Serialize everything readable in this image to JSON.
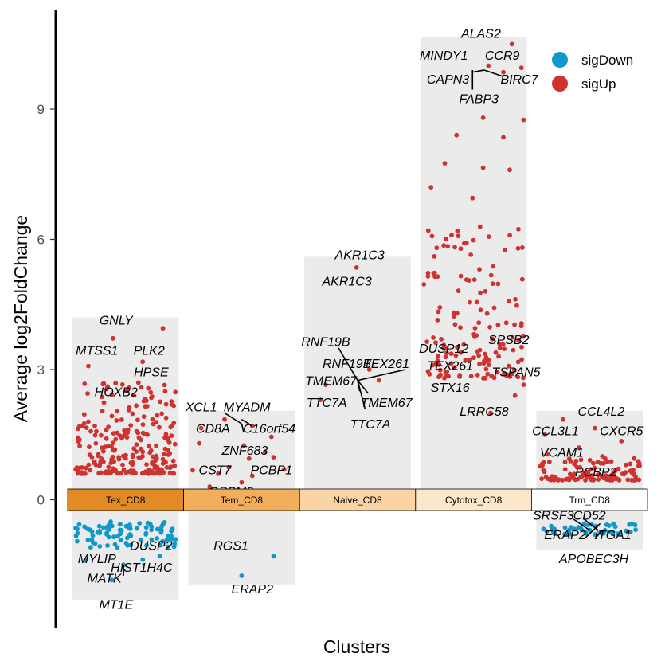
{
  "chart_data": {
    "type": "scatter",
    "title": "",
    "xlabel": "Clusters",
    "ylabel": "Average log2FoldChange",
    "ylim": [
      -2.9,
      11.3
    ],
    "yticks": [
      0,
      3,
      6,
      9
    ],
    "grid": false,
    "legend": {
      "position": "top-right",
      "entries": [
        {
          "name": "sigDown",
          "color": "#0f99cb"
        },
        {
          "name": "sigUp",
          "color": "#cf3330"
        }
      ]
    },
    "clusters": [
      {
        "name": "Tex_CD8",
        "color": "#e28a24",
        "bg_range": [
          -2.3,
          4.2
        ],
        "up": {
          "count": 230,
          "range": [
            0.6,
            2.7
          ],
          "seed": 11
        },
        "down": {
          "count": 90,
          "range": [
            -0.5,
            -1.1
          ],
          "seed": 12
        },
        "points": [
          {
            "y": 3.95,
            "dx": 0.85
          },
          {
            "y": 3.72,
            "dx": 0.38
          },
          {
            "y": 3.08,
            "dx": 0.15
          },
          {
            "y": 3.18,
            "dx": 0.66
          },
          {
            "y": 2.7,
            "dx": 0.62
          },
          {
            "y": 2.2,
            "dx": 0.88
          },
          {
            "y": 2.55,
            "dx": 0.32
          },
          {
            "y": -1.85,
            "dx": 0.37
          },
          {
            "y": -1.5,
            "dx": 0.48
          },
          {
            "y": -1.4,
            "dx": 0.12
          },
          {
            "y": -1.38,
            "dx": 0.66
          },
          {
            "y": -1.3,
            "dx": 0.82
          }
        ],
        "labels": [
          {
            "text": "GNLY",
            "y": 4.15,
            "dx": 0.41
          },
          {
            "text": "MTSS1",
            "y": 3.45,
            "dx": 0.23
          },
          {
            "text": "PLK2",
            "y": 3.45,
            "dx": 0.72
          },
          {
            "text": "HPSE",
            "y": 2.95,
            "dx": 0.74
          },
          {
            "text": "HOXB2",
            "y": 2.5,
            "dx": 0.41
          },
          {
            "text": "DUSP2",
            "y": -1.05,
            "dx": 0.74
          },
          {
            "text": "MYLIP",
            "y": -1.35,
            "dx": 0.23
          },
          {
            "text": "HIST1H4C",
            "y": -1.55,
            "dx": 0.65
          },
          {
            "text": "MATK",
            "y": -1.8,
            "dx": 0.3
          },
          {
            "text": "MT1E",
            "y": -2.4,
            "dx": 0.41
          }
        ],
        "segments": [
          {
            "y1": -1.75,
            "dx1": 0.48,
            "y2": -1.5,
            "dx2": 0.48
          }
        ]
      },
      {
        "name": "Tem_CD8",
        "color": "#f3ae5c",
        "bg_range": [
          -1.95,
          2.05
        ],
        "up": {
          "count": 0
        },
        "down": {
          "count": 0
        },
        "points": [
          {
            "y": 1.85,
            "dx": 0.34
          },
          {
            "y": 1.65,
            "dx": 0.12
          },
          {
            "y": 1.7,
            "dx": 0.6
          },
          {
            "y": 1.45,
            "dx": 0.78
          },
          {
            "y": 1.3,
            "dx": 0.1
          },
          {
            "y": 1.25,
            "dx": 0.52
          },
          {
            "y": 1.1,
            "dx": 0.72
          },
          {
            "y": 0.95,
            "dx": 0.57
          },
          {
            "y": 0.98,
            "dx": 0.8
          },
          {
            "y": 0.75,
            "dx": 0.38
          },
          {
            "y": 0.7,
            "dx": 0.9
          },
          {
            "y": 0.6,
            "dx": 0.28
          },
          {
            "y": 0.55,
            "dx": 0.6
          },
          {
            "y": 0.68,
            "dx": 0.04
          },
          {
            "y": 0.4,
            "dx": 0.5
          },
          {
            "y": 0.3,
            "dx": 0.2
          },
          {
            "y": -1.3,
            "dx": 0.8
          },
          {
            "y": -1.75,
            "dx": 0.5
          }
        ],
        "labels": [
          {
            "text": "XCL1",
            "y": 2.15,
            "dx": 0.12
          },
          {
            "text": "MYADM",
            "y": 2.15,
            "dx": 0.55
          },
          {
            "text": "CD8A",
            "y": 1.65,
            "dx": 0.23
          },
          {
            "text": "C16orf54",
            "y": 1.65,
            "dx": 0.76
          },
          {
            "text": "ZNF683",
            "y": 1.15,
            "dx": 0.53
          },
          {
            "text": "CST7",
            "y": 0.7,
            "dx": 0.25
          },
          {
            "text": "PCBP1",
            "y": 0.7,
            "dx": 0.78
          },
          {
            "text": "GPSM3",
            "y": 0.2,
            "dx": 0.4
          },
          {
            "text": "RGS1",
            "y": -1.05,
            "dx": 0.4
          },
          {
            "text": "ERAP2",
            "y": -2.05,
            "dx": 0.6
          }
        ],
        "segments": [
          {
            "y1": 2.0,
            "dx1": 0.34,
            "y2": 1.75,
            "dx2": 0.5
          },
          {
            "y1": 1.85,
            "dx1": 0.5,
            "y2": 1.75,
            "dx2": 0.57
          },
          {
            "y1": 1.75,
            "dx1": 0.5,
            "y2": 1.55,
            "dx2": 0.52
          }
        ]
      },
      {
        "name": "Naive_CD8",
        "color": "#fbd4a6",
        "bg_range": [
          0.2,
          5.6
        ],
        "up": {
          "count": 0
        },
        "down": {
          "count": 0
        },
        "points": [
          {
            "y": 5.35,
            "dx": 0.49
          },
          {
            "y": 3.0,
            "dx": 0.61
          },
          {
            "y": 2.75,
            "dx": 0.7
          },
          {
            "y": 2.65,
            "dx": 0.2
          },
          {
            "y": 2.3,
            "dx": 0.15
          }
        ],
        "labels": [
          {
            "text": "AKR1C3",
            "y": 5.65,
            "dx": 0.52
          },
          {
            "text": "AKR1C3",
            "y": 5.05,
            "dx": 0.4
          },
          {
            "text": "RNF19B",
            "y": 3.65,
            "dx": 0.2
          },
          {
            "text": "RNF19B",
            "y": 3.15,
            "dx": 0.4
          },
          {
            "text": "TEX261",
            "y": 3.15,
            "dx": 0.77
          },
          {
            "text": "TMEM67",
            "y": 2.75,
            "dx": 0.25
          },
          {
            "text": "TTC7A",
            "y": 2.25,
            "dx": 0.21
          },
          {
            "text": "TMEM67",
            "y": 2.25,
            "dx": 0.77
          },
          {
            "text": "TTC7A",
            "y": 1.75,
            "dx": 0.62
          }
        ],
        "segments": [
          {
            "y1": 3.5,
            "dx1": 0.32,
            "y2": 2.75,
            "dx2": 0.5
          },
          {
            "y1": 2.75,
            "dx1": 0.5,
            "y2": 3.0,
            "dx2": 0.95
          },
          {
            "y1": 2.75,
            "dx1": 0.5,
            "y2": 2.5,
            "dx2": 0.52
          },
          {
            "y1": 2.75,
            "dx1": 0.5,
            "y2": 2.1,
            "dx2": 0.57
          },
          {
            "y1": 2.75,
            "dx1": 0.5,
            "y2": 2.45,
            "dx2": 0.6
          }
        ]
      },
      {
        "name": "Cytotox_CD8",
        "color": "#fde7cb",
        "bg_range": [
          0.25,
          10.65
        ],
        "up": {
          "count": 150,
          "range": [
            2.8,
            6.3
          ],
          "seed": 31
        },
        "down": {
          "count": 0
        },
        "points": [
          {
            "y": 10.5,
            "dx": 0.86
          },
          {
            "y": 10.0,
            "dx": 0.64
          },
          {
            "y": 9.85,
            "dx": 0.78
          },
          {
            "y": 9.95,
            "dx": 0.95
          },
          {
            "y": 8.8,
            "dx": 0.59
          },
          {
            "y": 8.75,
            "dx": 0.97
          },
          {
            "y": 8.4,
            "dx": 0.34
          },
          {
            "y": 8.35,
            "dx": 0.78
          },
          {
            "y": 7.75,
            "dx": 0.23
          },
          {
            "y": 7.65,
            "dx": 0.59
          },
          {
            "y": 7.6,
            "dx": 0.84
          },
          {
            "y": 7.2,
            "dx": 0.1
          },
          {
            "y": 6.95,
            "dx": 0.49
          },
          {
            "y": 3.2,
            "dx": 0.6
          },
          {
            "y": 2.85,
            "dx": 0.67
          },
          {
            "y": 2.65,
            "dx": 0.97
          },
          {
            "y": 2.4,
            "dx": 0.89
          },
          {
            "y": 2.0,
            "dx": 0.66
          }
        ],
        "labels": [
          {
            "text": "ALAS2",
            "y": 10.75,
            "dx": 0.57
          },
          {
            "text": "MINDY1",
            "y": 10.25,
            "dx": 0.22
          },
          {
            "text": "CCR9",
            "y": 10.25,
            "dx": 0.77
          },
          {
            "text": "CAPN3",
            "y": 9.7,
            "dx": 0.26
          },
          {
            "text": "BIRC7",
            "y": 9.7,
            "dx": 0.93
          },
          {
            "text": "FABP3",
            "y": 9.25,
            "dx": 0.55
          },
          {
            "text": "SPSB2",
            "y": 3.7,
            "dx": 0.83
          },
          {
            "text": "DUSP12",
            "y": 3.5,
            "dx": 0.22
          },
          {
            "text": "TEX261",
            "y": 3.1,
            "dx": 0.28
          },
          {
            "text": "TSPAN5",
            "y": 2.95,
            "dx": 0.9
          },
          {
            "text": "STX16",
            "y": 2.6,
            "dx": 0.28
          },
          {
            "text": "LRRC58",
            "y": 2.05,
            "dx": 0.6
          }
        ],
        "segments": [
          {
            "y1": 9.85,
            "dx1": 0.49,
            "y2": 9.9,
            "dx2": 0.6
          },
          {
            "y1": 9.9,
            "dx1": 0.6,
            "y2": 9.75,
            "dx2": 0.78
          },
          {
            "y1": 9.9,
            "dx1": 0.49,
            "y2": 9.45,
            "dx2": 0.49
          }
        ]
      },
      {
        "name": "Trm_CD8",
        "color": "#ffffff",
        "bg_range": [
          -1.15,
          2.05
        ],
        "up": {
          "count": 110,
          "range": [
            0.45,
            0.95
          ],
          "seed": 51
        },
        "down": {
          "count": 45,
          "range": [
            -0.55,
            -0.8
          ],
          "seed": 52
        },
        "points": [
          {
            "y": 1.85,
            "dx": 0.25
          },
          {
            "y": 1.65,
            "dx": 0.55
          },
          {
            "y": 1.5,
            "dx": 0.08
          },
          {
            "y": 1.35,
            "dx": 0.8
          },
          {
            "y": 1.2,
            "dx": 0.4
          },
          {
            "y": 1.05,
            "dx": 0.1
          },
          {
            "y": 1.0,
            "dx": 0.62
          },
          {
            "y": 0.95,
            "dx": 0.92
          },
          {
            "y": -0.8,
            "dx": 0.55
          },
          {
            "y": -0.75,
            "dx": 0.72
          }
        ],
        "labels": [
          {
            "text": "CCL4L2",
            "y": 2.05,
            "dx": 0.61
          },
          {
            "text": "CCL3L1",
            "y": 1.6,
            "dx": 0.18
          },
          {
            "text": "CXCR5",
            "y": 1.6,
            "dx": 0.8
          },
          {
            "text": "VCAM1",
            "y": 1.1,
            "dx": 0.24
          },
          {
            "text": "PCBP2",
            "y": 0.65,
            "dx": 0.56
          },
          {
            "text": "SRSF3",
            "y": -0.35,
            "dx": 0.16
          },
          {
            "text": "CD52",
            "y": -0.35,
            "dx": 0.5
          },
          {
            "text": "ERAP2",
            "y": -0.8,
            "dx": 0.27
          },
          {
            "text": "ITGA1",
            "y": -0.8,
            "dx": 0.72
          },
          {
            "text": "APOBEC3H",
            "y": -1.35,
            "dx": 0.54
          }
        ],
        "segments": [
          {
            "y1": -0.45,
            "dx1": 0.35,
            "y2": -0.7,
            "dx2": 0.5
          },
          {
            "y1": -0.45,
            "dx1": 0.45,
            "y2": -0.7,
            "dx2": 0.58
          },
          {
            "y1": -0.55,
            "dx1": 0.6,
            "y2": -0.9,
            "dx2": 0.45
          },
          {
            "y1": -0.7,
            "dx1": 0.62,
            "y2": -0.9,
            "dx2": 0.55
          }
        ]
      }
    ]
  }
}
